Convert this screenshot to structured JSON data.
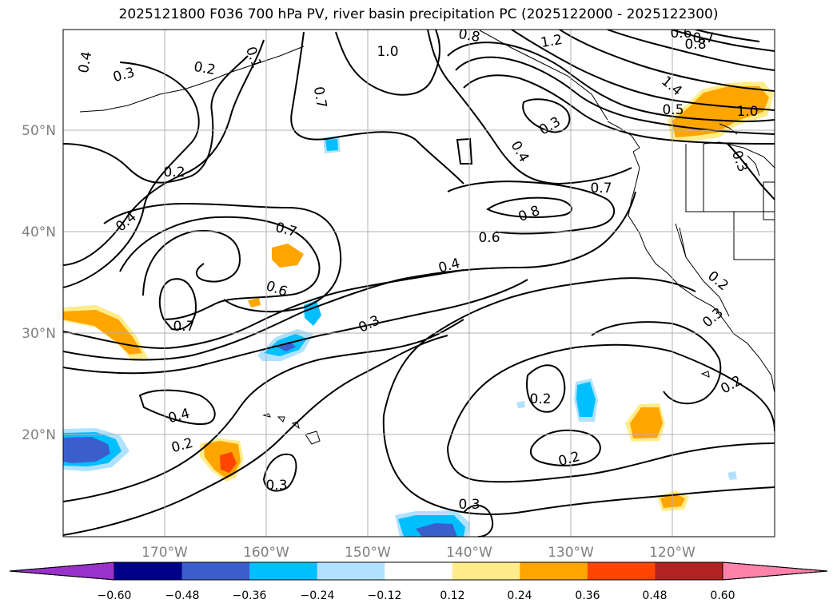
{
  "title": "2025121800 F036 700 hPa PV, river basin precipitation PC (2025122000 - 2025122300)",
  "map": {
    "lat_labels": [
      "50°N",
      "40°N",
      "30°N",
      "20°N"
    ],
    "lon_labels": [
      "170°W",
      "160°W",
      "150°W",
      "140°W",
      "130°W",
      "120°W"
    ],
    "grid": true
  },
  "contour_labels": [
    "0.4",
    "0.3",
    "0.2",
    "0.1",
    "0.8",
    "1.2",
    "0.6",
    "0.7",
    "1.0",
    "0.8",
    "0.7",
    "1.4",
    "0.5",
    "1.0",
    "0.3",
    "0.4",
    "0.3",
    "0.2",
    "0.7",
    "0.8",
    "0.6",
    "0.4",
    "0.7",
    "0.6",
    "0.4",
    "0.3",
    "0.7",
    "0.4",
    "0.2",
    "0.2",
    "0.3",
    "0.2",
    "0.3",
    "0.2",
    "0.3",
    "0.2",
    "0.3"
  ],
  "colorbar": {
    "ticks": [
      "−0.60",
      "−0.48",
      "−0.36",
      "−0.24",
      "−0.12",
      "0.12",
      "0.24",
      "0.36",
      "0.48",
      "0.60"
    ],
    "colors": [
      "#9932cc",
      "#00008b",
      "#3a5fcd",
      "#00bfff",
      "#b0e2ff",
      "#ffffff",
      "#ffec8b",
      "#ffa500",
      "#ff4500",
      "#b22222",
      "#ff82ab"
    ]
  }
}
